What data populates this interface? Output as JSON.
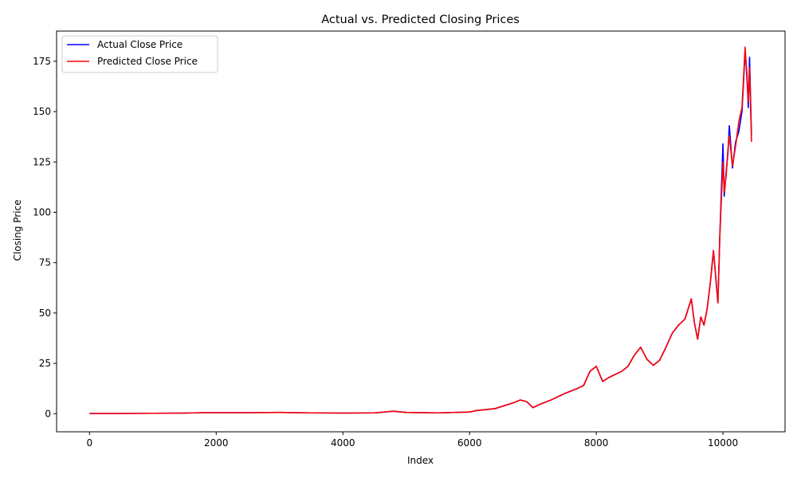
{
  "chart_data": {
    "type": "line",
    "title": "Actual vs. Predicted Closing Prices",
    "xlabel": "Index",
    "ylabel": "Closing Price",
    "xlim": [
      -520,
      10980
    ],
    "ylim": [
      -9,
      190
    ],
    "xticks": [
      0,
      2000,
      4000,
      6000,
      8000,
      10000
    ],
    "yticks": [
      0,
      25,
      50,
      75,
      100,
      125,
      150,
      175
    ],
    "grid": false,
    "legend_position": "top-left",
    "series": [
      {
        "name": "Actual Close Price",
        "color": "#0000ff",
        "x": [
          0,
          500,
          1000,
          1500,
          1800,
          2500,
          3000,
          3500,
          4000,
          4500,
          4800,
          5000,
          5500,
          6000,
          6100,
          6400,
          6700,
          6800,
          6900,
          7000,
          7100,
          7300,
          7500,
          7700,
          7800,
          7900,
          8000,
          8100,
          8200,
          8400,
          8500,
          8600,
          8700,
          8800,
          8900,
          9000,
          9100,
          9200,
          9300,
          9400,
          9500,
          9550,
          9600,
          9650,
          9700,
          9750,
          9800,
          9850,
          9880,
          9920,
          9950,
          10000,
          10020,
          10050,
          10080,
          10100,
          10150,
          10200,
          10250,
          10300,
          10350,
          10380,
          10400,
          10420,
          10450
        ],
        "values": [
          0.1,
          0.1,
          0.2,
          0.3,
          0.5,
          0.5,
          0.6,
          0.4,
          0.3,
          0.4,
          1.2,
          0.6,
          0.4,
          0.8,
          1.5,
          2.5,
          5.5,
          6.8,
          6.0,
          3.0,
          4.5,
          7.0,
          10.0,
          12.5,
          14.0,
          21.0,
          23.5,
          16.0,
          18.0,
          21.0,
          23.5,
          29.0,
          33.0,
          27.0,
          24.0,
          26.5,
          33.0,
          40.0,
          44.0,
          47.0,
          57.0,
          45.0,
          37.0,
          48.0,
          44.0,
          52.0,
          65.0,
          81.0,
          70.0,
          55.0,
          88.0,
          134.0,
          108.0,
          120.0,
          130.0,
          143.0,
          122.0,
          135.0,
          140.0,
          150.0,
          180.0,
          168.0,
          152.0,
          177.0,
          138.0
        ]
      },
      {
        "name": "Predicted Close Price",
        "color": "#ff0000",
        "x": [
          0,
          500,
          1000,
          1500,
          1800,
          2500,
          3000,
          3500,
          4000,
          4500,
          4800,
          5000,
          5500,
          6000,
          6100,
          6400,
          6700,
          6800,
          6900,
          7000,
          7100,
          7300,
          7500,
          7700,
          7800,
          7900,
          8000,
          8100,
          8200,
          8400,
          8500,
          8600,
          8700,
          8800,
          8900,
          9000,
          9100,
          9200,
          9300,
          9400,
          9500,
          9550,
          9600,
          9650,
          9700,
          9750,
          9800,
          9850,
          9880,
          9920,
          9950,
          10000,
          10020,
          10050,
          10080,
          10100,
          10150,
          10200,
          10250,
          10300,
          10350,
          10380,
          10400,
          10420,
          10450
        ],
        "values": [
          0.1,
          0.1,
          0.2,
          0.3,
          0.5,
          0.5,
          0.6,
          0.4,
          0.3,
          0.4,
          1.2,
          0.6,
          0.4,
          0.8,
          1.5,
          2.5,
          5.5,
          6.8,
          6.0,
          3.0,
          4.5,
          7.0,
          10.0,
          12.5,
          14.0,
          21.0,
          23.5,
          16.0,
          18.0,
          21.0,
          23.5,
          29.0,
          33.0,
          27.0,
          24.0,
          26.5,
          33.0,
          40.0,
          44.0,
          47.0,
          57.0,
          45.0,
          37.0,
          48.0,
          44.0,
          52.0,
          65.0,
          81.0,
          70.0,
          55.0,
          88.0,
          125.0,
          110.0,
          118.0,
          132.0,
          138.0,
          123.0,
          133.0,
          145.0,
          152.0,
          182.0,
          165.0,
          155.0,
          172.0,
          135.0
        ]
      }
    ]
  }
}
